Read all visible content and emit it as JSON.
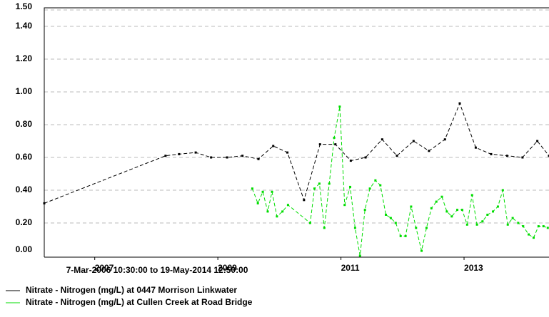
{
  "chart_data": {
    "type": "line",
    "subtitle": "7-Mar-2006 10:30:00 to 19-May-2014 12:50:00",
    "xlim": [
      2006.18,
      2014.38
    ],
    "xticks": [
      2007,
      2009,
      2011,
      2013
    ],
    "ylim": [
      0,
      1.5
    ],
    "yticks": [
      {
        "value": 0,
        "label": "0.00"
      },
      {
        "value": 0.2,
        "label": "0.20"
      },
      {
        "value": 0.4,
        "label": "0.40"
      },
      {
        "value": 0.6,
        "label": "0.60"
      },
      {
        "value": 0.8,
        "label": "0.80"
      },
      {
        "value": 1.0,
        "label": "1.00"
      },
      {
        "value": 1.2,
        "label": "1.20"
      },
      {
        "value": 1.4,
        "label": "1.40"
      },
      {
        "value": 1.5,
        "label": "1.50"
      }
    ],
    "grid": true,
    "series": [
      {
        "name": "Nitrate - Nitrogen (mg/L) at 0447 Morrison Linkwater",
        "color": "#000000",
        "x": [
          2006.18,
          2008.15,
          2008.37,
          2008.64,
          2008.89,
          2009.15,
          2009.4,
          2009.66,
          2009.9,
          2010.13,
          2010.4,
          2010.66,
          2010.91,
          2011.16,
          2011.4,
          2011.67,
          2011.91,
          2012.18,
          2012.43,
          2012.69,
          2012.93,
          2013.19,
          2013.44,
          2013.7,
          2013.95,
          2014.19,
          2014.38
        ],
        "values": [
          0.32,
          0.61,
          0.62,
          0.63,
          0.6,
          0.6,
          0.61,
          0.59,
          0.67,
          0.63,
          0.34,
          0.68,
          0.68,
          0.58,
          0.6,
          0.71,
          0.61,
          0.7,
          0.64,
          0.71,
          0.93,
          0.66,
          0.62,
          0.61,
          0.6,
          0.7,
          0.61
        ]
      },
      {
        "name": "Nitrate - Nitrogen (mg/L) at Cullen Creek at Road Bridge",
        "color": "#00dd00",
        "x": [
          2009.56,
          2009.65,
          2009.73,
          2009.81,
          2009.88,
          2009.96,
          2010.05,
          2010.14,
          2010.5,
          2010.57,
          2010.65,
          2010.73,
          2010.81,
          2010.89,
          2010.98,
          2011.06,
          2011.15,
          2011.23,
          2011.31,
          2011.39,
          2011.47,
          2011.56,
          2011.64,
          2011.73,
          2011.81,
          2011.89,
          2011.97,
          2012.05,
          2012.14,
          2012.22,
          2012.31,
          2012.39,
          2012.47,
          2012.55,
          2012.64,
          2012.72,
          2012.8,
          2012.89,
          2012.97,
          2013.05,
          2013.13,
          2013.21,
          2013.3,
          2013.38,
          2013.47,
          2013.55,
          2013.63,
          2013.71,
          2013.79,
          2013.88,
          2013.96,
          2014.05,
          2014.13,
          2014.21,
          2014.29,
          2014.36
        ],
        "values": [
          0.41,
          0.32,
          0.39,
          0.27,
          0.39,
          0.24,
          0.27,
          0.31,
          0.2,
          0.41,
          0.44,
          0.17,
          0.44,
          0.72,
          0.91,
          0.31,
          0.42,
          0.17,
          0.0,
          0.28,
          0.41,
          0.46,
          0.43,
          0.25,
          0.23,
          0.2,
          0.12,
          0.12,
          0.3,
          0.17,
          0.03,
          0.17,
          0.29,
          0.33,
          0.36,
          0.27,
          0.24,
          0.28,
          0.28,
          0.19,
          0.37,
          0.19,
          0.21,
          0.25,
          0.27,
          0.3,
          0.4,
          0.19,
          0.23,
          0.2,
          0.18,
          0.13,
          0.11,
          0.18,
          0.18,
          0.17
        ]
      }
    ]
  }
}
